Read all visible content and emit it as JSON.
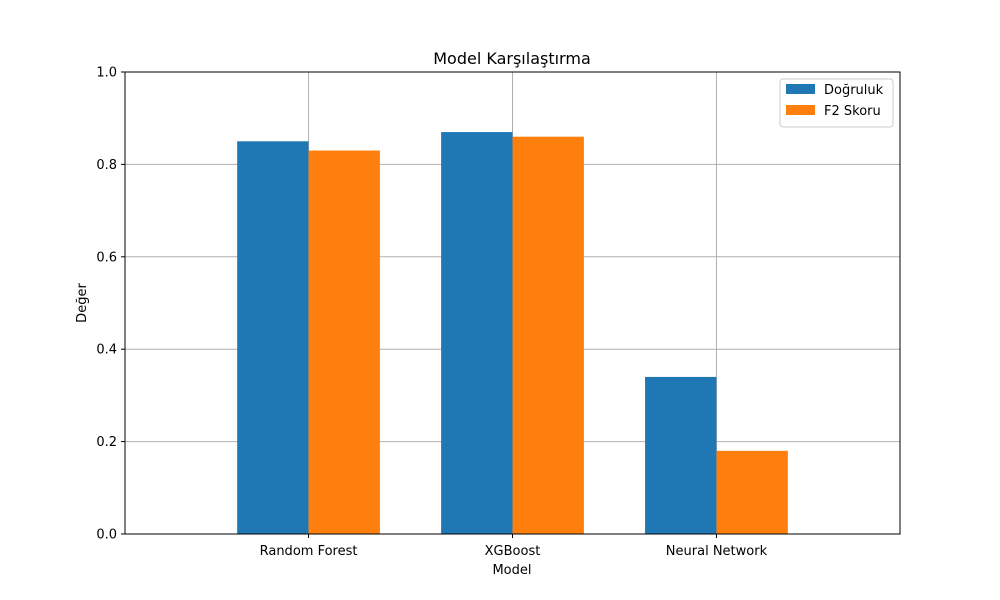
{
  "chart_data": {
    "type": "bar",
    "title": "Model Karşılaştırma",
    "xlabel": "Model",
    "ylabel": "Değer",
    "categories": [
      "Random Forest",
      "XGBoost",
      "Neural Network"
    ],
    "series": [
      {
        "name": "Doğruluk",
        "values": [
          0.85,
          0.87,
          0.34
        ],
        "color": "#1f77b4"
      },
      {
        "name": "F2 Skoru",
        "values": [
          0.83,
          0.86,
          0.18
        ],
        "color": "#ff7f0e"
      }
    ],
    "ylim": [
      0,
      1.0
    ],
    "yticks": [
      "0.0",
      "0.2",
      "0.4",
      "0.6",
      "0.8",
      "1.0"
    ],
    "grid": true,
    "legend_position": "top-right"
  }
}
